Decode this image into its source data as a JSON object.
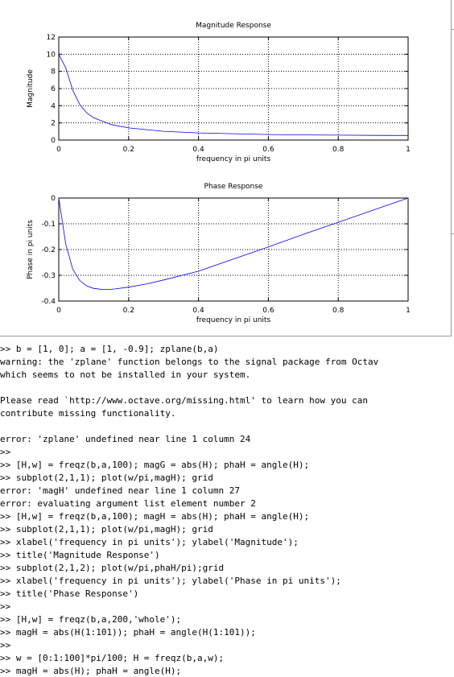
{
  "colors": {
    "line": "#0000ff",
    "grid": "#000000",
    "axes": "#000000",
    "text": "#000000",
    "border": "#9a9a9a"
  },
  "figure": {
    "plots": [
      {
        "title": "Magnitude Response",
        "xlabel": "frequency in pi units",
        "ylabel": "Magnitude",
        "xlim": [
          0,
          1
        ],
        "ylim": [
          0,
          12
        ],
        "xticks": [
          0,
          0.2,
          0.4,
          0.6,
          0.8,
          1
        ],
        "xticklabels": [
          "0",
          "0.2",
          "0.4",
          "0.6",
          "0.8",
          "1"
        ],
        "yticks": [
          0,
          2,
          4,
          6,
          8,
          10,
          12
        ],
        "yticklabels": [
          "0",
          "2",
          "4",
          "6",
          "8",
          "10",
          "12"
        ],
        "grid": true
      },
      {
        "title": "Phase Response",
        "xlabel": "frequency in pi units",
        "ylabel": "Phase in pi units",
        "xlim": [
          0,
          1
        ],
        "ylim": [
          -0.4,
          0
        ],
        "xticks": [
          0,
          0.2,
          0.4,
          0.6,
          0.8,
          1
        ],
        "xticklabels": [
          "0",
          "0.2",
          "0.4",
          "0.6",
          "0.8",
          "1"
        ],
        "yticks": [
          -0.4,
          -0.3,
          -0.2,
          -0.1,
          0
        ],
        "yticklabels": [
          "-0.4",
          "-0.3",
          "-0.2",
          "-0.1",
          "0"
        ],
        "grid": true
      }
    ]
  },
  "chart_data": [
    {
      "type": "line",
      "title": "Magnitude Response",
      "xlabel": "frequency in pi units",
      "ylabel": "Magnitude",
      "xlim": [
        0,
        1
      ],
      "ylim": [
        0,
        12
      ],
      "grid": true,
      "x": [
        0,
        0.02,
        0.04,
        0.06,
        0.08,
        0.1,
        0.15,
        0.2,
        0.3,
        0.4,
        0.5,
        0.6,
        0.7,
        0.8,
        0.9,
        1.0
      ],
      "values": [
        10.0,
        8.41,
        5.8,
        4.14,
        3.18,
        2.59,
        1.81,
        1.42,
        1.02,
        0.83,
        0.74,
        0.65,
        0.6,
        0.57,
        0.54,
        0.53
      ]
    },
    {
      "type": "line",
      "title": "Phase Response",
      "xlabel": "frequency in pi units",
      "ylabel": "Phase in pi units",
      "xlim": [
        0,
        1
      ],
      "ylim": [
        -0.4,
        0
      ],
      "grid": true,
      "x": [
        0,
        0.02,
        0.04,
        0.06,
        0.08,
        0.1,
        0.12,
        0.14,
        0.16,
        0.2,
        0.25,
        0.3,
        0.4,
        0.5,
        0.6,
        0.7,
        0.8,
        0.9,
        1.0
      ],
      "values": [
        0,
        -0.179,
        -0.276,
        -0.32,
        -0.341,
        -0.351,
        -0.354,
        -0.355,
        -0.353,
        -0.346,
        -0.334,
        -0.318,
        -0.284,
        -0.237,
        -0.19,
        -0.141,
        -0.094,
        -0.047,
        0
      ]
    }
  ],
  "console": {
    "lines": [
      ">> b = [1, 0]; a = [1, -0.9]; zplane(b,a)",
      "warning: the 'zplane' function belongs to the signal package from Octav",
      "which seems to not be installed in your system.",
      "",
      "Please read `http://www.octave.org/missing.html' to learn how you can",
      "contribute missing functionality.",
      "",
      "error: 'zplane' undefined near line 1 column 24",
      ">>",
      ">> [H,w] = freqz(b,a,100); magG = abs(H); phaH = angle(H);",
      ">> subplot(2,1,1); plot(w/pi,magH); grid",
      "error: 'magH' undefined near line 1 column 27",
      "error: evaluating argument list element number 2",
      ">> [H,w] = freqz(b,a,100); magH = abs(H); phaH = angle(H);",
      ">> subplot(2,1,1); plot(w/pi,magH); grid",
      ">> xlabel('frequency in pi units'); ylabel('Magnitude');",
      ">> title('Magnitude Response')",
      ">> subplot(2,1,2); plot(w/pi,phaH/pi);grid",
      ">> xlabel('frequency in pi units'); ylabel('Phase in pi units');",
      ">> title('Phase Response')",
      ">>",
      ">> [H,w] = freqz(b,a,200,'whole');",
      ">> magH = abs(H(1:101)); phaH = angle(H(1:101));",
      ">>",
      ">> w = [0:1:100]*pi/100; H = freqz(b,a,w);",
      ">> magH = abs(H); phaH = angle(H);"
    ]
  }
}
